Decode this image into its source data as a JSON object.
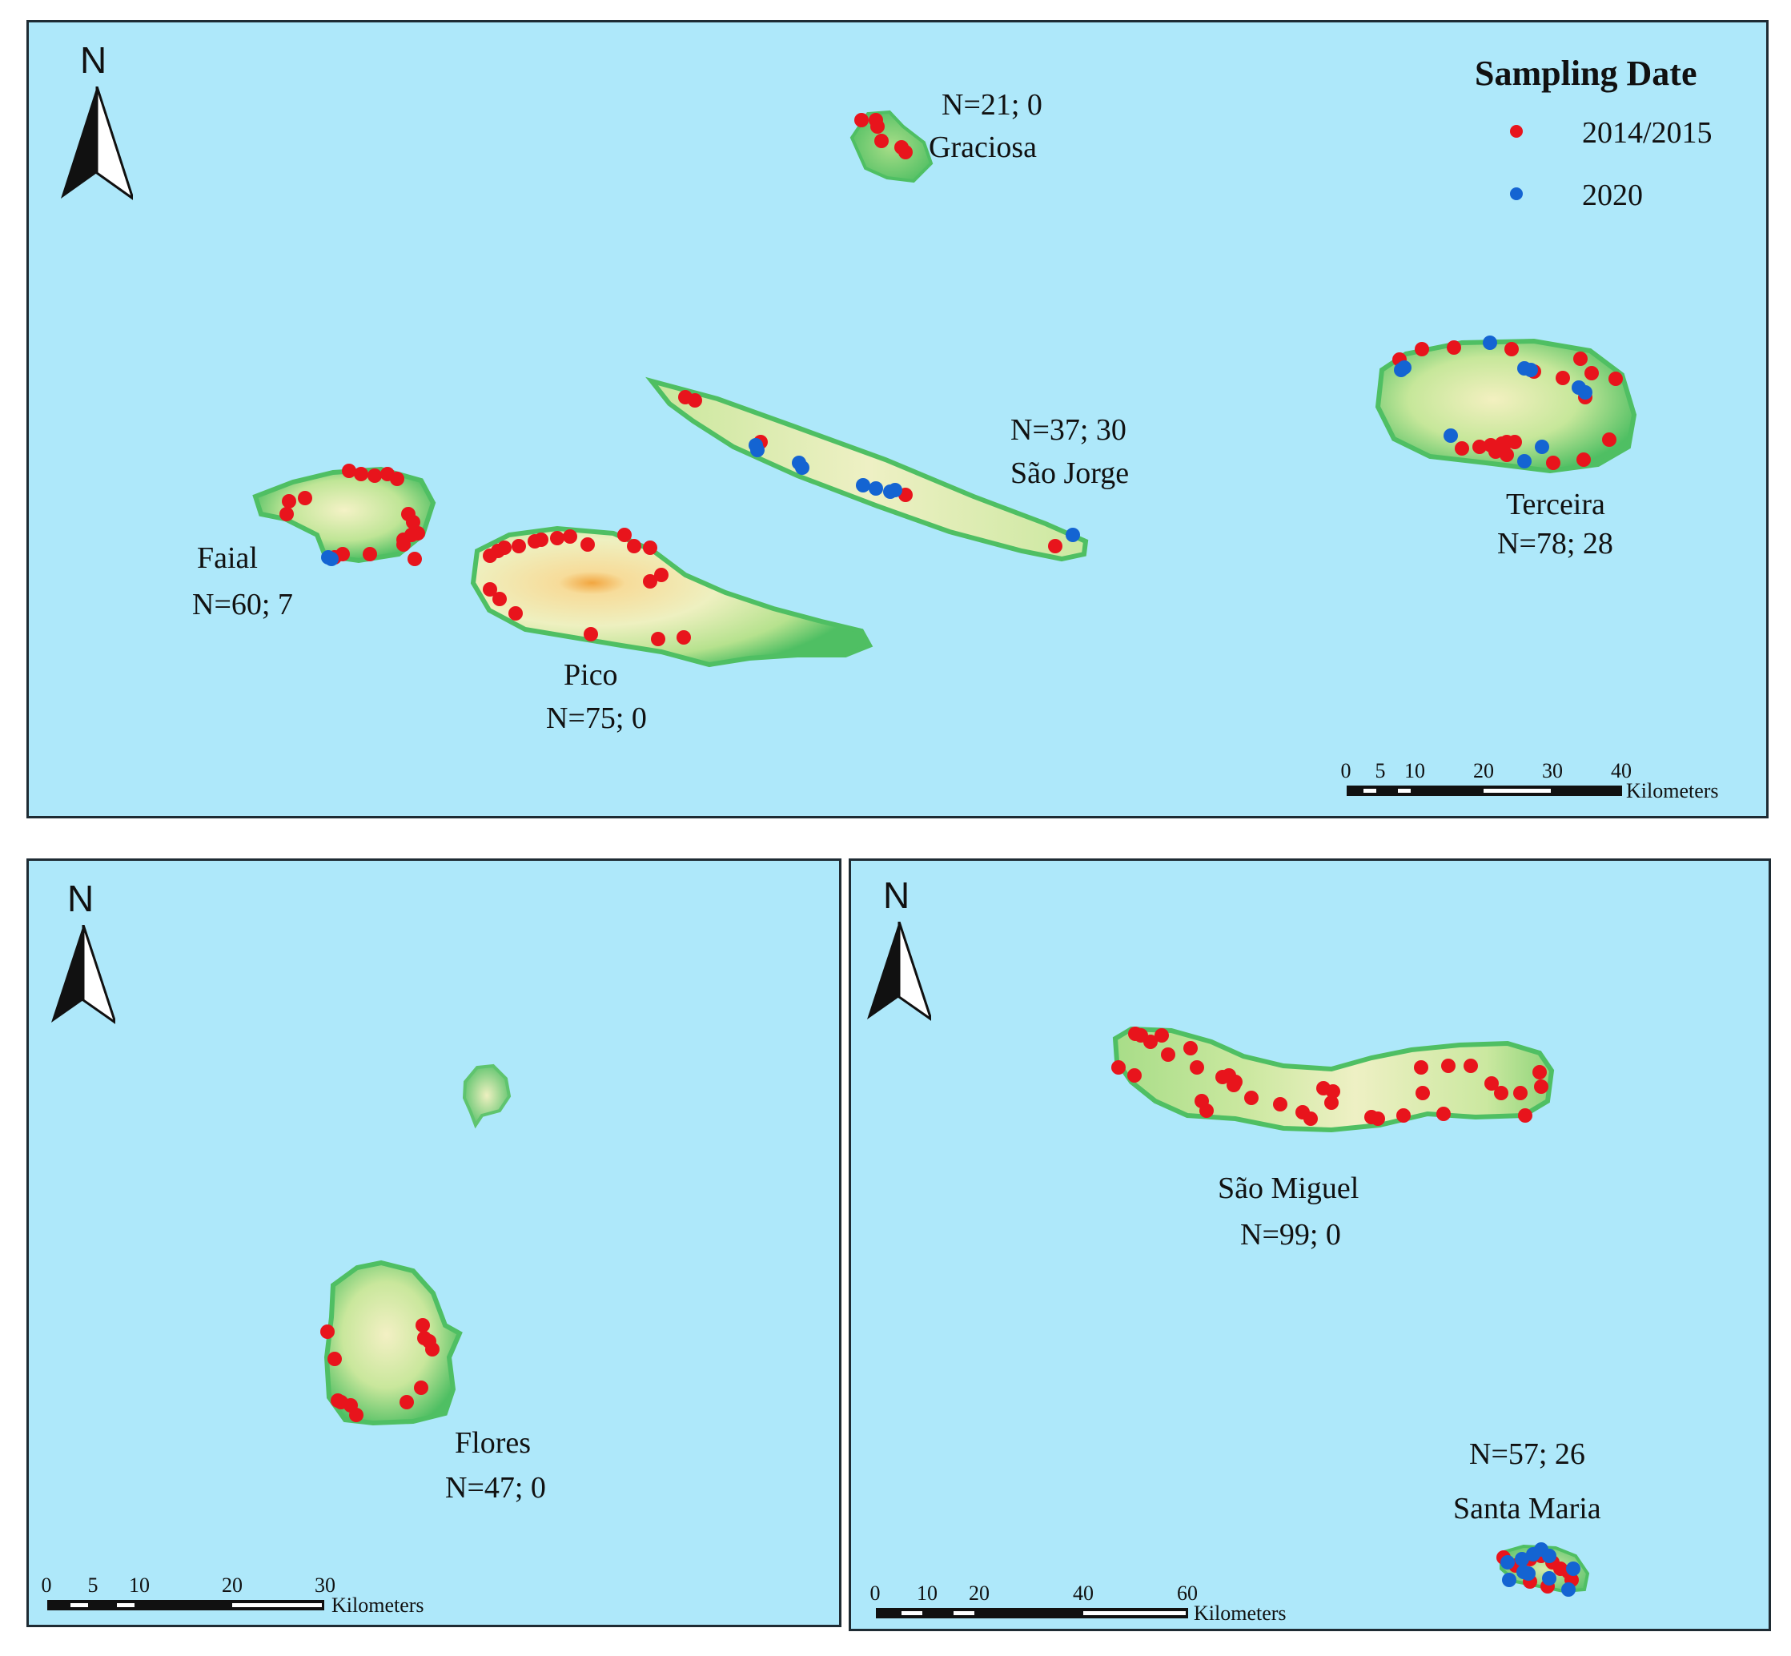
{
  "colors": {
    "sea": "#aee8fa",
    "sampling_2014_2015": "#e8141c",
    "sampling_2020": "#1464d2",
    "land_low": "#5fc46e",
    "land_mid": "#d8eca8",
    "land_high": "#f3b040"
  },
  "icons": {
    "north_arrow": "north-arrow-icon"
  },
  "legend": {
    "title": "Sampling Date",
    "items": [
      {
        "label": "2014/2015",
        "color": "#e8141c"
      },
      {
        "label": "2020",
        "color": "#1464d2"
      }
    ]
  },
  "panels": {
    "central": {
      "north": "N",
      "scale": {
        "ticks": [
          "0",
          "5",
          "10",
          "20",
          "30",
          "40"
        ],
        "unit": "Kilometers"
      },
      "islands": {
        "graciosa": {
          "name": "Graciosa",
          "count": "N=21;  0"
        },
        "sao_jorge": {
          "name": "São Jorge",
          "count": "N=37;  30"
        },
        "terceira": {
          "name": "Terceira",
          "count": "N=78;  28"
        },
        "faial": {
          "name": "Faial",
          "count": "N=60;  7"
        },
        "pico": {
          "name": "Pico",
          "count": "N=75;  0"
        }
      }
    },
    "western": {
      "north": "N",
      "scale": {
        "ticks": [
          "0",
          "5",
          "10",
          "20",
          "30"
        ],
        "unit": "Kilometers"
      },
      "islands": {
        "flores": {
          "name": "Flores",
          "count": "N=47;  0"
        }
      }
    },
    "eastern": {
      "north": "N",
      "scale": {
        "ticks": [
          "0",
          "10",
          "20",
          "40",
          "60"
        ],
        "unit": "Kilometers"
      },
      "islands": {
        "sao_miguel": {
          "name": "São Miguel",
          "count": "N=99;  0"
        },
        "santa_maria": {
          "name": "Santa Maria",
          "count": "N=57;  26"
        }
      }
    }
  }
}
